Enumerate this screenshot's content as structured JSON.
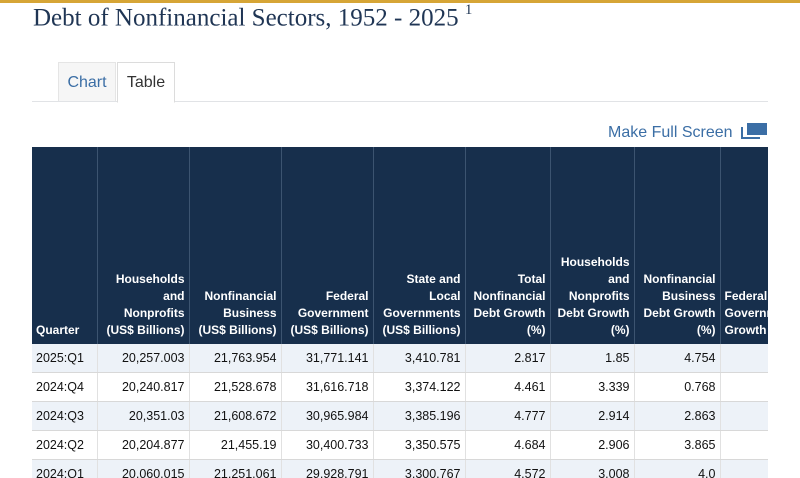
{
  "page": {
    "title": "Debt of Nonfinancial Sectors, 1952 - 2025",
    "footnote_marker": "1"
  },
  "tabs": [
    {
      "label": "Chart",
      "active": false
    },
    {
      "label": "Table",
      "active": true
    }
  ],
  "toolbar": {
    "fullscreen_label": "Make Full Screen",
    "fullscreen_icon": "fullscreen-icon"
  },
  "table": {
    "headers": [
      "Quarter",
      "Households and Nonprofits (US$ Billions)",
      "Nonfinancial Business (US$ Billions)",
      "Federal Government (US$ Billions)",
      "State and Local Governments (US$ Billions)",
      "Total Nonfinancial Debt Growth (%)",
      "Households and Nonprofits Debt Growth (%)",
      "Nonfinancial Business Debt Growth (%)",
      "Federal Government Growth"
    ],
    "rows": [
      [
        "2025:Q1",
        "20,257.003",
        "21,763.954",
        "31,771.141",
        "3,410.781",
        "2.817",
        "1.85",
        "4.754",
        ""
      ],
      [
        "2024:Q4",
        "20,240.817",
        "21,528.678",
        "31,616.718",
        "3,374.122",
        "4.461",
        "3.339",
        "0.768",
        ""
      ],
      [
        "2024:Q3",
        "20,351.03",
        "21,608.672",
        "30,965.984",
        "3,385.196",
        "4.777",
        "2.914",
        "2.863",
        ""
      ],
      [
        "2024:Q2",
        "20,204.877",
        "21,455.19",
        "30,400.733",
        "3,350.575",
        "4.684",
        "2.906",
        "3.865",
        ""
      ],
      [
        "2024:Q1",
        "20,060.015",
        "21,251.061",
        "29,928.791",
        "3,300.767",
        "4.572",
        "3.008",
        "4.0",
        ""
      ]
    ]
  },
  "colors": {
    "header_bg": "#172f4c",
    "accent_bar": "#d6a536",
    "link": "#3b6ea5",
    "title": "#1f3554",
    "row_stripe": "#edf2f8"
  }
}
